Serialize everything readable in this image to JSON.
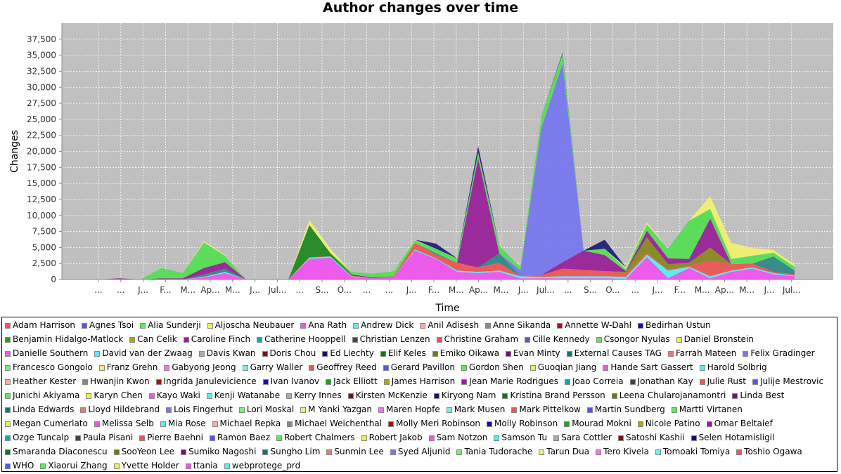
{
  "chart_data": {
    "type": "area",
    "stacked": true,
    "title": "Author changes over time",
    "xlabel": "Time",
    "ylabel": "Changes",
    "ylim": [
      0,
      40000
    ],
    "yticks": [
      "0",
      "2,500",
      "5,000",
      "7,500",
      "10,000",
      "12,500",
      "15,000",
      "17,500",
      "20,000",
      "22,500",
      "25,000",
      "27,500",
      "30,000",
      "32,500",
      "35,000",
      "37,500"
    ],
    "ytick_values": [
      0,
      2500,
      5000,
      7500,
      10000,
      12500,
      15000,
      17500,
      20000,
      22500,
      25000,
      27500,
      30000,
      32500,
      35000,
      37500
    ],
    "xticks": [
      "...",
      "...",
      "J...",
      "F...",
      "M...",
      "Ap...",
      "M...",
      "J...",
      "Jul...",
      "...",
      "S...",
      "O...",
      "...",
      "...",
      "J...",
      "F...",
      "M...",
      "Ap...",
      "M...",
      "J...",
      "Jul...",
      "...",
      "S...",
      "O...",
      "...",
      "J...",
      "F...",
      "M...",
      "Ap...",
      "M...",
      "J...",
      "Jul..."
    ],
    "grid": true,
    "plot_background": "#c0c0c0",
    "legend_position": "bottom",
    "series": [
      {
        "name": "Ana Rath",
        "color": "#ee55ee",
        "values": [
          0,
          0,
          0,
          0,
          0,
          300,
          1000,
          0,
          0,
          0,
          3200,
          3400,
          400,
          200,
          400,
          4500,
          3200,
          1200,
          1000,
          1200,
          200,
          200,
          200,
          200,
          200,
          100,
          3500,
          200,
          1800,
          200,
          1200,
          1700,
          800,
          500
        ]
      },
      {
        "name": "Andrew Dick",
        "color": "#55eeee",
        "values": [
          0,
          0,
          0,
          0,
          0,
          100,
          200,
          0,
          0,
          0,
          200,
          200,
          100,
          0,
          0,
          200,
          100,
          200,
          200,
          200,
          300,
          200,
          300,
          300,
          300,
          300,
          400,
          1200,
          200,
          300,
          200,
          200,
          200,
          100
        ]
      },
      {
        "name": "Christine Graham",
        "color": "#ee5555",
        "values": [
          0,
          0,
          0,
          0,
          0,
          100,
          0,
          0,
          0,
          0,
          100,
          0,
          100,
          0,
          100,
          1000,
          600,
          1200,
          700,
          1200,
          0,
          300,
          1200,
          1000,
          800,
          600,
          200,
          200,
          100,
          2500,
          1000,
          600,
          200,
          200
        ]
      },
      {
        "name": "Sungho Lim",
        "color": "#338888",
        "values": [
          0,
          0,
          0,
          0,
          0,
          300,
          500,
          0,
          0,
          0,
          0,
          0,
          0,
          0,
          0,
          0,
          200,
          0,
          0,
          1500,
          0,
          0,
          0,
          0,
          0,
          0,
          0,
          0,
          0,
          0,
          0,
          0,
          2400,
          600
        ]
      },
      {
        "name": "Elif Keles",
        "color": "#228822",
        "values": [
          0,
          0,
          0,
          0,
          0,
          0,
          0,
          0,
          0,
          0,
          5000,
          500,
          0,
          0,
          0,
          0,
          0,
          0,
          0,
          0,
          0,
          0,
          0,
          0,
          0,
          0,
          0,
          0,
          0,
          0,
          0,
          0,
          0,
          0
        ]
      },
      {
        "name": "Emiko Oikawa",
        "color": "#888822",
        "values": [
          0,
          0,
          0,
          0,
          0,
          0,
          0,
          0,
          0,
          0,
          0,
          0,
          0,
          0,
          0,
          0,
          0,
          0,
          0,
          0,
          0,
          0,
          0,
          0,
          0,
          200,
          2500,
          800,
          500,
          2000,
          0,
          0,
          0,
          0
        ]
      },
      {
        "name": "Evan Minty",
        "color": "#992299",
        "values": [
          0,
          200,
          0,
          200,
          200,
          1000,
          1000,
          0,
          0,
          0,
          0,
          0,
          200,
          100,
          0,
          0,
          0,
          0,
          17000,
          0,
          0,
          0,
          1000,
          3000,
          2500,
          100,
          1000,
          900,
          600,
          4500,
          0,
          0,
          0,
          0
        ]
      },
      {
        "name": "Felix Gradinger",
        "color": "#7777ee",
        "values": [
          0,
          0,
          0,
          0,
          0,
          0,
          0,
          0,
          0,
          0,
          0,
          0,
          0,
          0,
          0,
          0,
          0,
          0,
          0,
          0,
          900,
          23000,
          31000,
          0,
          0,
          0,
          0,
          0,
          0,
          0,
          0,
          0,
          0,
          0
        ]
      },
      {
        "name": "Csongor Nyulas",
        "color": "#55dd55",
        "values": [
          0,
          0,
          0,
          1600,
          800,
          4000,
          1000,
          0,
          0,
          0,
          0,
          0,
          400,
          600,
          800,
          400,
          700,
          700,
          800,
          1200,
          500,
          1800,
          1500,
          0,
          1000,
          300,
          1000,
          1500,
          6000,
          1500,
          800,
          1200,
          600,
          600
        ]
      },
      {
        "name": "Yvette Holder",
        "color": "#f0f070",
        "values": [
          0,
          0,
          0,
          0,
          0,
          200,
          100,
          0,
          0,
          0,
          800,
          700,
          0,
          0,
          0,
          100,
          0,
          0,
          100,
          0,
          0,
          0,
          0,
          0,
          0,
          300,
          300,
          0,
          0,
          2000,
          2500,
          1200,
          400,
          300
        ]
      },
      {
        "name": "Ed Liechty",
        "color": "#222277",
        "values": [
          0,
          0,
          0,
          0,
          0,
          0,
          0,
          0,
          0,
          0,
          0,
          0,
          0,
          0,
          0,
          0,
          800,
          0,
          1000,
          0,
          0,
          0,
          200,
          0,
          1400,
          0,
          0,
          0,
          0,
          0,
          0,
          0,
          0,
          0
        ]
      }
    ]
  },
  "legend": [
    {
      "name": "Adam Harrison",
      "color": "#ee5555"
    },
    {
      "name": "Agnes Tsoi",
      "color": "#5555ee"
    },
    {
      "name": "Alia Sunderji",
      "color": "#55ee55"
    },
    {
      "name": "Aljoscha Neubauer",
      "color": "#eeee55"
    },
    {
      "name": "Ana Rath",
      "color": "#ee55ee"
    },
    {
      "name": "Andrew Dick",
      "color": "#55eeee"
    },
    {
      "name": "Anil Adisesh",
      "color": "#ffaaaa"
    },
    {
      "name": "Anne Sikanda",
      "color": "#888888"
    },
    {
      "name": "Annette W-Dahl",
      "color": "#aa1111"
    },
    {
      "name": "Bedirhan Ustun",
      "color": "#1111aa"
    },
    {
      "name": "Benjamin Hidalgo-Matlock",
      "color": "#11aa11"
    },
    {
      "name": "Can Celik",
      "color": "#aaaa11"
    },
    {
      "name": "Caroline Finch",
      "color": "#aa11aa"
    },
    {
      "name": "Catherine Hooppell",
      "color": "#11aaaa"
    },
    {
      "name": "Christian Lenzen",
      "color": "#444444"
    },
    {
      "name": "Christine Graham",
      "color": "#ee5555"
    },
    {
      "name": "Cille Kennedy",
      "color": "#5555ee"
    },
    {
      "name": "Csongor Nyulas",
      "color": "#55ee55"
    },
    {
      "name": "Daniel Bronstein",
      "color": "#eeee55"
    },
    {
      "name": "Danielle Southern",
      "color": "#ee55ee"
    },
    {
      "name": "David van der Zwaag",
      "color": "#55eeee"
    },
    {
      "name": "Davis Kwan",
      "color": "#aaaaaa"
    },
    {
      "name": "Doris Chou",
      "color": "#771111"
    },
    {
      "name": "Ed Liechty",
      "color": "#111177"
    },
    {
      "name": "Elif Keles",
      "color": "#117711"
    },
    {
      "name": "Emiko Oikawa",
      "color": "#777711"
    },
    {
      "name": "Evan Minty",
      "color": "#771177"
    },
    {
      "name": "External Causes TAG",
      "color": "#117777"
    },
    {
      "name": "Farrah Mateen",
      "color": "#ee7777"
    },
    {
      "name": "Felix Gradinger",
      "color": "#7777ee"
    },
    {
      "name": "Francesco Gongolo",
      "color": "#77ee77"
    },
    {
      "name": "Franz Grehn",
      "color": "#eeee77"
    },
    {
      "name": "Gabyong Jeong",
      "color": "#ee77ee"
    },
    {
      "name": "Garry Waller",
      "color": "#77eeee"
    },
    {
      "name": "Geoffrey Reed",
      "color": "#ee5555"
    },
    {
      "name": "Gerard Pavillon",
      "color": "#5555ee"
    },
    {
      "name": "Gordon Shen",
      "color": "#55ee55"
    },
    {
      "name": "Guoqian Jiang",
      "color": "#eeee55"
    },
    {
      "name": "Hande Sart Gassert",
      "color": "#ee55ee"
    },
    {
      "name": "Harold Solbrig",
      "color": "#55eeee"
    },
    {
      "name": "Heather Kester",
      "color": "#ffaaaa"
    },
    {
      "name": "Hwanjin Kwon",
      "color": "#888888"
    },
    {
      "name": "Ingrida Janulevicience",
      "color": "#aa1111"
    },
    {
      "name": "Ivan Ivanov",
      "color": "#1111aa"
    },
    {
      "name": "Jack Elliott",
      "color": "#11aa11"
    },
    {
      "name": "James Harrison",
      "color": "#aaaa11"
    },
    {
      "name": "Jean Marie Rodrigues",
      "color": "#aa11aa"
    },
    {
      "name": "Joao Correia",
      "color": "#11aaaa"
    },
    {
      "name": "Jonathan Kay",
      "color": "#444444"
    },
    {
      "name": "Julie Rust",
      "color": "#ee5555"
    },
    {
      "name": "Julije Mestrovic",
      "color": "#5555ee"
    },
    {
      "name": "Junichi Akiyama",
      "color": "#55ee55"
    },
    {
      "name": "Karyn Chen",
      "color": "#eeee55"
    },
    {
      "name": "Kayo Waki",
      "color": "#ee55ee"
    },
    {
      "name": "Kenji Watanabe",
      "color": "#55eeee"
    },
    {
      "name": "Kerry Innes",
      "color": "#aaaaaa"
    },
    {
      "name": "Kirsten McKenzie",
      "color": "#771111"
    },
    {
      "name": "Kiryong Nam",
      "color": "#111177"
    },
    {
      "name": "Kristina Brand Persson",
      "color": "#117711"
    },
    {
      "name": "Leena Chularojanamontri",
      "color": "#777711"
    },
    {
      "name": "Linda Best",
      "color": "#771177"
    },
    {
      "name": "Linda Edwards",
      "color": "#117777"
    },
    {
      "name": "Lloyd Hildebrand",
      "color": "#ee7777"
    },
    {
      "name": "Lois Fingerhut",
      "color": "#7777ee"
    },
    {
      "name": "Lori Moskal",
      "color": "#77ee77"
    },
    {
      "name": "M Yanki Yazgan",
      "color": "#eeee77"
    },
    {
      "name": "Maren Hopfe",
      "color": "#ee77ee"
    },
    {
      "name": "Mark Musen",
      "color": "#77eeee"
    },
    {
      "name": "Mark Pittelkow",
      "color": "#ee5555"
    },
    {
      "name": "Martin Sundberg",
      "color": "#5555ee"
    },
    {
      "name": "Martti Virtanen",
      "color": "#55ee55"
    },
    {
      "name": "Megan Cumerlato",
      "color": "#eeee55"
    },
    {
      "name": "Melissa Selb",
      "color": "#ee55ee"
    },
    {
      "name": "Mia Rose",
      "color": "#55eeee"
    },
    {
      "name": "Michael Repka",
      "color": "#ffaaaa"
    },
    {
      "name": "Michael Weichenthal",
      "color": "#888888"
    },
    {
      "name": "Molly Meri Robinson",
      "color": "#aa1111"
    },
    {
      "name": "Molly Robinson",
      "color": "#1111aa"
    },
    {
      "name": "Mourad Mokni",
      "color": "#11aa11"
    },
    {
      "name": "Nicole Patino",
      "color": "#aaaa11"
    },
    {
      "name": "Omar Beltaief",
      "color": "#aa11aa"
    },
    {
      "name": "Ozge Tuncalp",
      "color": "#11aaaa"
    },
    {
      "name": "Paula Pisani",
      "color": "#444444"
    },
    {
      "name": "Pierre Baehni",
      "color": "#ee5555"
    },
    {
      "name": "Ramon Baez",
      "color": "#5555ee"
    },
    {
      "name": "Robert Chalmers",
      "color": "#55ee55"
    },
    {
      "name": "Robert Jakob",
      "color": "#eeee55"
    },
    {
      "name": "Sam Notzon",
      "color": "#ee55ee"
    },
    {
      "name": "Samson Tu",
      "color": "#55eeee"
    },
    {
      "name": "Sara Cottler",
      "color": "#aaaaaa"
    },
    {
      "name": "Satoshi Kashii",
      "color": "#771111"
    },
    {
      "name": "Selen Hotamisligil",
      "color": "#111177"
    },
    {
      "name": "Smaranda Diaconescu",
      "color": "#117711"
    },
    {
      "name": "SooYeon Lee",
      "color": "#777711"
    },
    {
      "name": "Sumiko Nagoshi",
      "color": "#771177"
    },
    {
      "name": "Sungho Lim",
      "color": "#117777"
    },
    {
      "name": "Sunmin Lee",
      "color": "#ee7777"
    },
    {
      "name": "Syed Aljunid",
      "color": "#7777ee"
    },
    {
      "name": "Tania Tudorache",
      "color": "#77ee77"
    },
    {
      "name": "Tarun Dua",
      "color": "#eeee77"
    },
    {
      "name": "Tero Kivela",
      "color": "#ee77ee"
    },
    {
      "name": "Tomoaki Tomiya",
      "color": "#77eeee"
    },
    {
      "name": "Toshio Ogawa",
      "color": "#ee5555"
    },
    {
      "name": "WHO",
      "color": "#5555ee"
    },
    {
      "name": "Xiaorui Zhang",
      "color": "#55ee55"
    },
    {
      "name": "Yvette Holder",
      "color": "#eeee55"
    },
    {
      "name": "ttania",
      "color": "#ee55ee"
    },
    {
      "name": "webprotege_prd",
      "color": "#55eeee"
    }
  ]
}
